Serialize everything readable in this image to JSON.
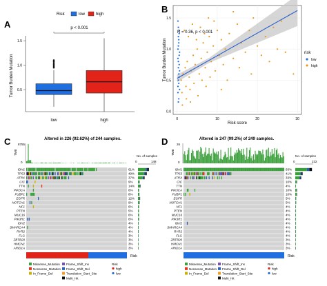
{
  "panels": [
    {
      "label": "A"
    },
    {
      "label": "B"
    },
    {
      "label": "C"
    },
    {
      "label": "D"
    }
  ],
  "colors": {
    "low": "#1f6fe0",
    "high": "#e2231a",
    "dots": "#e89a1a"
  },
  "legend_risk": {
    "title": "Risk",
    "items": [
      "low",
      "high"
    ]
  },
  "chart_data": [
    {
      "type": "box",
      "panel": "A",
      "categories": [
        "low",
        "high"
      ],
      "boxes": [
        {
          "name": "low",
          "q1": 0.4,
          "median": 0.48,
          "q3": 0.62,
          "whisker_low": 0.15,
          "whisker_high": 0.9,
          "outliers": [
            0.95,
            0.98,
            1.01,
            1.04,
            1.07,
            1.1
          ]
        },
        {
          "name": "high",
          "q1": 0.43,
          "median": 0.66,
          "q3": 0.89,
          "whisker_low": 0.05,
          "whisker_high": 1.55,
          "outliers": []
        }
      ],
      "annotation": "p < 0.001",
      "xlabel": "",
      "ylabel": "Tumor Burden Mutation",
      "yticks": [
        0.5,
        1.0,
        1.5
      ],
      "ylim": [
        0.05,
        1.6
      ],
      "legend": {
        "title": "Risk",
        "items": [
          "low",
          "high"
        ],
        "position": "top"
      }
    },
    {
      "type": "scatter",
      "panel": "B",
      "annotation": "R = 0.36, p < 0.001",
      "xlabel": "Risk score",
      "ylabel": "Tumor Burden Mutation",
      "xticks": [
        0,
        10,
        20,
        30
      ],
      "yticks": [
        0.0,
        0.5,
        1.0,
        1.5
      ],
      "xlim": [
        -1,
        31
      ],
      "ylim": [
        -0.05,
        1.7
      ],
      "legend": {
        "title": "risk",
        "items": [
          "low",
          "high"
        ],
        "position": "right"
      },
      "regression": {
        "x0": 0,
        "y0": 0.53,
        "x1": 30,
        "y1": 1.62
      },
      "points_low": [
        [
          0.2,
          0.4
        ],
        [
          0.3,
          0.5
        ],
        [
          0.4,
          0.6
        ],
        [
          0.3,
          0.7
        ],
        [
          0.5,
          0.55
        ],
        [
          0.2,
          0.3
        ],
        [
          0.4,
          0.45
        ],
        [
          0.6,
          0.65
        ],
        [
          0.3,
          0.8
        ],
        [
          0.5,
          0.9
        ],
        [
          0.2,
          1.0
        ],
        [
          0.4,
          1.1
        ],
        [
          0.3,
          1.2
        ],
        [
          0.5,
          1.3
        ],
        [
          0.2,
          1.45
        ],
        [
          0.4,
          0.2
        ],
        [
          0.6,
          0.35
        ],
        [
          0.3,
          0.15
        ],
        [
          0.5,
          0.75
        ],
        [
          0.2,
          0.85
        ],
        [
          0.6,
          0.95
        ],
        [
          0.3,
          1.05
        ],
        [
          0.4,
          1.15
        ],
        [
          0.5,
          1.25
        ],
        [
          0.3,
          1.35
        ]
      ],
      "points_high": [
        [
          1,
          0.5
        ],
        [
          1.5,
          0.6
        ],
        [
          2,
          0.7
        ],
        [
          2.5,
          0.8
        ],
        [
          3,
          0.55
        ],
        [
          3.5,
          0.65
        ],
        [
          4,
          0.9
        ],
        [
          4.5,
          0.75
        ],
        [
          5,
          1.0
        ],
        [
          5.5,
          0.6
        ],
        [
          6,
          0.85
        ],
        [
          6.5,
          1.1
        ],
        [
          7,
          0.7
        ],
        [
          7.5,
          0.95
        ],
        [
          8,
          1.2
        ],
        [
          8.5,
          0.8
        ],
        [
          9,
          1.05
        ],
        [
          9.5,
          0.65
        ],
        [
          10,
          1.3
        ],
        [
          10.5,
          0.9
        ],
        [
          11,
          1.15
        ],
        [
          11.5,
          0.75
        ],
        [
          12,
          1.0
        ],
        [
          13,
          1.25
        ],
        [
          14,
          0.85
        ],
        [
          15,
          1.4
        ],
        [
          16,
          1.1
        ],
        [
          17,
          0.95
        ],
        [
          18,
          1.3
        ],
        [
          19,
          1.5
        ],
        [
          20,
          1.05
        ],
        [
          21,
          0.9
        ],
        [
          22,
          1.2
        ],
        [
          23,
          0.8
        ],
        [
          24,
          1.35
        ],
        [
          25,
          1.0
        ],
        [
          26,
          1.45
        ],
        [
          27,
          0.95
        ],
        [
          28,
          1.55
        ],
        [
          29,
          0.6
        ],
        [
          1.2,
          0.3
        ],
        [
          2.2,
          0.4
        ],
        [
          3.2,
          0.35
        ],
        [
          4.2,
          0.45
        ],
        [
          5.2,
          0.25
        ],
        [
          6.2,
          0.5
        ],
        [
          7.2,
          0.4
        ],
        [
          8.2,
          0.55
        ],
        [
          1.8,
          1.3
        ],
        [
          2.8,
          1.2
        ],
        [
          3.8,
          1.4
        ],
        [
          4.8,
          1.15
        ],
        [
          5.8,
          1.35
        ],
        [
          6.8,
          1.25
        ],
        [
          7.8,
          1.5
        ],
        [
          9.2,
          1.45
        ],
        [
          1.3,
          0.1
        ],
        [
          2.3,
          0.2
        ],
        [
          3.3,
          0.15
        ],
        [
          12.5,
          0.5
        ],
        [
          15.5,
          0.7
        ],
        [
          18.5,
          0.6
        ],
        [
          11,
          0.35
        ],
        [
          14,
          1.6
        ]
      ]
    },
    {
      "type": "oncoplot",
      "panel": "C",
      "title": "Altered in 226 (92.62%) of 244 samples.",
      "tmb_axis": [
        "8755",
        "0"
      ],
      "tmb_label": "TMB",
      "no_mut_label": "No. of samples",
      "no_mut_ticks": [
        "0",
        "148"
      ],
      "genes": [
        "IDH1",
        "TP53",
        "ATRX",
        "CIC",
        "TTN",
        "PIK3CA",
        "FUBP1",
        "EGFR",
        "NOTCH1",
        "NF1",
        "PTEN",
        "MUC16",
        "PIK3R1",
        "IDH2",
        "SMARCA4",
        "RYR2",
        "FLG",
        "ZBTB20",
        "HMCN1",
        "ARID1A"
      ],
      "percents": [
        "61%",
        "49%",
        "37%",
        "9%",
        "14%",
        "6%",
        "8%",
        "12%",
        "9%",
        "6%",
        "5%",
        "6%",
        "6%",
        "4%",
        "4%",
        "4%",
        "3%",
        "3%",
        "3%",
        "3%"
      ],
      "risk_bar_label": "Risk",
      "risk_split": 0.62
    },
    {
      "type": "oncoplot",
      "panel": "D",
      "title": "Altered in 247 (99.2%) of 249 samples.",
      "tmb_axis": [
        "26",
        "0"
      ],
      "tmb_label": "TMB",
      "no_mut_label": "No. of samples",
      "no_mut_ticks": [
        "0",
        "232"
      ],
      "genes": [
        "IDH1",
        "TP53",
        "ATRX",
        "CIC",
        "TTN",
        "PIK3CA",
        "FUBP1",
        "EGFR",
        "NOTCH1",
        "NF1",
        "PTEN",
        "MUC16",
        "PIK3R1",
        "IDH2",
        "SMARCA4",
        "RYR2",
        "FLG",
        "ZBTB20",
        "HMCN1",
        "ARID1A"
      ],
      "percents": [
        "93%",
        "41%",
        "33%",
        "10%",
        "4%",
        "10%",
        "10%",
        "5%",
        "5%",
        "4%",
        "4%",
        "4%",
        "4%",
        "4%",
        "4%",
        "4%",
        "4%",
        "3%",
        "3%",
        "3%"
      ],
      "risk_bar_label": "Risk",
      "risk_split": 0.0
    }
  ],
  "mutation_legend": {
    "columns": [
      [
        "Missense_Mutation",
        "Nonsense_Mutation",
        "In_Frame_Del"
      ],
      [
        "Frame_Shift_Ins",
        "Frame_Shift_Del",
        "Translation_Start_Site",
        "Multi_Hit"
      ]
    ],
    "colors": {
      "Missense_Mutation": "#3aa03a",
      "Nonsense_Mutation": "#e0301e",
      "In_Frame_Del": "#c8b400",
      "Frame_Shift_Ins": "#7b4fb5",
      "Frame_Shift_Del": "#2a5fb0",
      "Translation_Start_Site": "#f0a020",
      "Multi_Hit": "#111111"
    },
    "risk_title": "Risk",
    "risk_items": [
      "high",
      "low"
    ]
  }
}
